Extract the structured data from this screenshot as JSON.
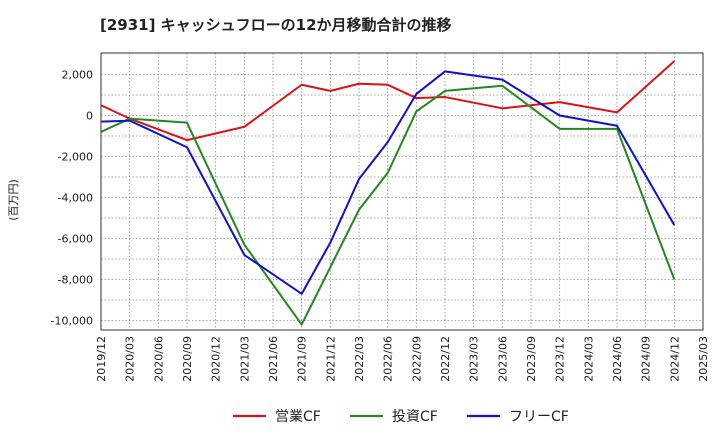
{
  "chart_data": {
    "type": "line",
    "title": "[2931]  キャッシュフローの12か月移動合計の推移",
    "ylabel": "(百万円)",
    "xlabel": "",
    "ylim": [
      -10500,
      3000
    ],
    "yticks": [
      2000,
      0,
      -2000,
      -4000,
      -6000,
      -8000,
      -10000
    ],
    "ytick_labels": [
      "2,000",
      "0",
      "-2,000",
      "-4,000",
      "-6,000",
      "-8,000",
      "-10,000"
    ],
    "categories": [
      "2019/12",
      "2020/03",
      "2020/06",
      "2020/09",
      "2020/12",
      "2021/03",
      "2021/06",
      "2021/09",
      "2021/12",
      "2022/03",
      "2022/06",
      "2022/09",
      "2022/12",
      "2023/03",
      "2023/06",
      "2023/09",
      "2023/12",
      "2024/03",
      "2024/06",
      "2024/09",
      "2024/12",
      "2025/03"
    ],
    "grid": true,
    "legend_position": "bottom-center",
    "series": [
      {
        "name": "営業CF",
        "color": "#dd1111",
        "values": [
          500,
          -150,
          null,
          -1200,
          null,
          -550,
          null,
          1500,
          1200,
          1550,
          1500,
          850,
          900,
          null,
          350,
          null,
          650,
          null,
          150,
          null,
          2650,
          null
        ]
      },
      {
        "name": "投資CF",
        "color": "#228822",
        "values": [
          -800,
          -150,
          null,
          -350,
          null,
          -6300,
          null,
          -10200,
          null,
          -4600,
          -2800,
          200,
          1200,
          null,
          1450,
          null,
          -650,
          null,
          -650,
          null,
          -8000,
          null
        ]
      },
      {
        "name": "フリーCF",
        "color": "#1111cc",
        "values": [
          -300,
          -250,
          null,
          -1550,
          null,
          -6800,
          null,
          -8700,
          -6200,
          -3100,
          -1300,
          1050,
          2150,
          null,
          1750,
          null,
          0,
          null,
          -500,
          null,
          -5350,
          null
        ]
      }
    ]
  }
}
